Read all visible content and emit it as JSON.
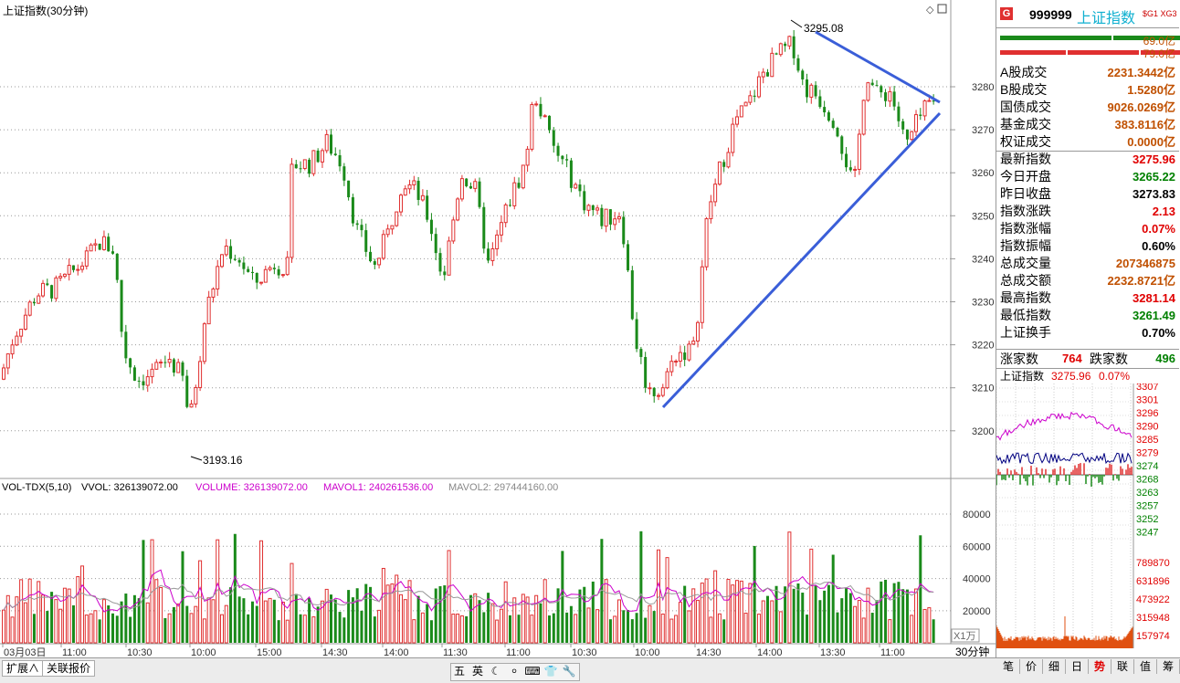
{
  "chart_title": "上证指数(30分钟)",
  "high_marker": "3295.08",
  "low_marker": "3193.16",
  "price_axis": [
    "3280",
    "3270",
    "3260",
    "3250",
    "3240",
    "3230",
    "3220",
    "3210",
    "3200"
  ],
  "volume_indicator": {
    "name": "VOL-TDX(5,10)",
    "vvol": "VVOL: 326139072.00",
    "volume": "VOLUME: 326139072.00",
    "mavol1": "MAVOL1: 240261536.00",
    "mavol2": "MAVOL2: 297444160.00"
  },
  "volume_axis": [
    "80000",
    "60000",
    "40000",
    "20000"
  ],
  "volume_unit": "X1万",
  "time_axis": [
    "03月03日",
    "11:00",
    "10:30",
    "10:00",
    "15:00",
    "14:30",
    "14:00",
    "11:30",
    "11:00",
    "10:30",
    "10:00",
    "14:30",
    "14:00",
    "13:30",
    "11:00"
  ],
  "period": "30分钟",
  "panel": {
    "code": "999999",
    "name": "上证指数",
    "badge": "G",
    "tags": "$G1 XG3",
    "bar_values": [
      "69.0亿",
      "79.0亿"
    ],
    "rows": [
      {
        "label": "A股成交",
        "value": "2231.3442亿",
        "color": "#c05000"
      },
      {
        "label": "B股成交",
        "value": "1.5280亿",
        "color": "#c05000"
      },
      {
        "label": "国债成交",
        "value": "9026.0269亿",
        "color": "#c05000"
      },
      {
        "label": "基金成交",
        "value": "383.8116亿",
        "color": "#c05000"
      },
      {
        "label": "权证成交",
        "value": "0.0000亿",
        "color": "#c05000"
      },
      {
        "label": "最新指数",
        "value": "3275.96",
        "color": "#e00000"
      },
      {
        "label": "今日开盘",
        "value": "3265.22",
        "color": "#008000"
      },
      {
        "label": "昨日收盘",
        "value": "3273.83",
        "color": "#000000"
      },
      {
        "label": "指数涨跌",
        "value": "2.13",
        "color": "#e00000"
      },
      {
        "label": "指数涨幅",
        "value": "0.07%",
        "color": "#e00000"
      },
      {
        "label": "指数振幅",
        "value": "0.60%",
        "color": "#000000"
      },
      {
        "label": "总成交量",
        "value": "207346875",
        "color": "#c05000"
      },
      {
        "label": "总成交额",
        "value": "2232.8721亿",
        "color": "#c05000"
      },
      {
        "label": "最高指数",
        "value": "3281.14",
        "color": "#e00000"
      },
      {
        "label": "最低指数",
        "value": "3261.49",
        "color": "#008000"
      },
      {
        "label": "上证换手",
        "value": "0.70%",
        "color": "#000000"
      }
    ],
    "rise_label": "涨家数",
    "rise_value": "764",
    "fall_label": "跌家数",
    "fall_value": "496",
    "mini_title": "上证指数",
    "mini_price": "3275.96",
    "mini_pct": "0.07%",
    "mini_price_axis": [
      "3307",
      "3301",
      "3296",
      "3290",
      "3285",
      "3279",
      "3274",
      "3268",
      "3263",
      "3257",
      "3252",
      "3247"
    ],
    "mini_vol_axis": [
      "789870",
      "631896",
      "473922",
      "315948",
      "157974"
    ]
  },
  "bottom_tabs": [
    "扩展∧",
    "关联报价"
  ],
  "toolbar_items": [
    "五",
    "英",
    "☾",
    "⸰",
    "⌨",
    "👕",
    "🔧"
  ],
  "right_tabs": [
    "笔",
    "价",
    "细",
    "日",
    "势",
    "联",
    "值",
    "筹"
  ],
  "colors": {
    "up": "#e03030",
    "down": "#1a8a1a",
    "trend": "#3a5ed8",
    "ma1": "#cc00cc",
    "ma2": "#888888"
  }
}
